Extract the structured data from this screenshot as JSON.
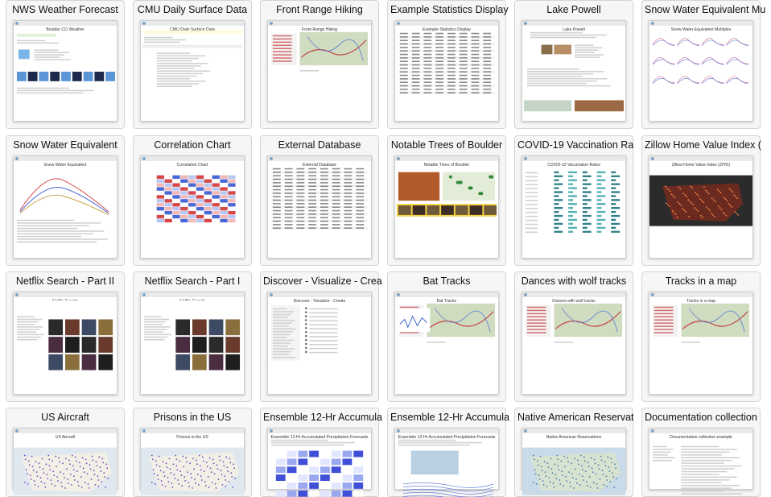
{
  "gallery": {
    "cards": [
      {
        "title": "NWS Weather Forecast",
        "thumb_heading": "Boulder CO Weather",
        "kind": "weather",
        "icon": "weather-forecast-icon"
      },
      {
        "title": "CMU Daily Surface Data",
        "thumb_heading": "CMU Daily Surface Data",
        "kind": "form",
        "icon": "surface-data-icon"
      },
      {
        "title": "Front Range Hiking",
        "thumb_heading": "Front Range Hiking",
        "kind": "map",
        "icon": "hiking-map-icon"
      },
      {
        "title": "Example Statistics Display",
        "thumb_heading": "Example Statistics Display",
        "kind": "table",
        "icon": "statistics-table-icon"
      },
      {
        "title": "Lake Powell",
        "thumb_heading": "Lake Powell",
        "kind": "photos",
        "icon": "lake-photo-icon"
      },
      {
        "title": "Snow Water Equivalent Mu",
        "thumb_heading": "Snow Water Equivalent Multiples",
        "kind": "multichart",
        "icon": "small-multiples-icon"
      },
      {
        "title": "Snow Water Equivalent",
        "thumb_heading": "Snow Water Equivalent",
        "kind": "linechart",
        "icon": "line-chart-icon"
      },
      {
        "title": "Correlation Chart",
        "thumb_heading": "Correlation Chart",
        "kind": "heatmap",
        "icon": "heatmap-icon"
      },
      {
        "title": "External Database",
        "thumb_heading": "External Database",
        "kind": "table",
        "icon": "database-table-icon"
      },
      {
        "title": "Notable Trees of Boulder",
        "thumb_heading": "Notable Trees of Boulder",
        "kind": "trees",
        "icon": "tree-photo-icon"
      },
      {
        "title": "COVID-19 Vaccination Ra",
        "thumb_heading": "COVID-19 Vaccination Rates",
        "kind": "bars",
        "icon": "bar-table-icon"
      },
      {
        "title": "Zillow Home Value Index (",
        "thumb_heading": "Zillow Home Value Index (ZHVI)",
        "kind": "darkmap",
        "icon": "choropleth-map-icon"
      },
      {
        "title": "Netflix Search - Part II",
        "thumb_heading": "Netflix Search",
        "kind": "posters",
        "icon": "poster-grid-icon"
      },
      {
        "title": "Netflix Search - Part I",
        "thumb_heading": "Netflix Search",
        "kind": "posters2",
        "icon": "poster-list-icon"
      },
      {
        "title": "Discover - Visualize - Crea",
        "thumb_heading": "Discover - Visualize - Create",
        "kind": "list",
        "icon": "list-icon"
      },
      {
        "title": "Bat Tracks",
        "thumb_heading": "Bat Tracks",
        "kind": "tracks",
        "icon": "track-chart-icon"
      },
      {
        "title": "Dances with wolf tracks",
        "thumb_heading": "Dances with wolf tracks",
        "kind": "map",
        "icon": "wolf-map-icon"
      },
      {
        "title": "Tracks in a map",
        "thumb_heading": "Tracks in a map",
        "kind": "map",
        "icon": "tracks-map-icon"
      },
      {
        "title": "US Aircraft",
        "thumb_heading": "US Aircraft",
        "kind": "dotmap",
        "icon": "aircraft-map-icon"
      },
      {
        "title": "Prisons in the US",
        "thumb_heading": "Prisons in the US",
        "kind": "dotmap",
        "icon": "prison-map-icon"
      },
      {
        "title": "Ensemble 12-Hr Accumula",
        "thumb_heading": "Ensemble 12-Hr Accumulated Precipitation Forecasts",
        "kind": "ensemble",
        "icon": "ensemble-grid-icon"
      },
      {
        "title": "Ensemble 12-Hr Accumula",
        "thumb_heading": "Ensemble 12-Hr Accumulated Precipitation Forecasts",
        "kind": "ensemble2",
        "icon": "ensemble-map-icon"
      },
      {
        "title": "Native American Reservat",
        "thumb_heading": "Native American Reservations",
        "kind": "bluemap",
        "icon": "reservation-map-icon"
      },
      {
        "title": "Documentation collection",
        "thumb_heading": "Documentation collection example",
        "kind": "docs",
        "icon": "document-icon"
      }
    ]
  }
}
